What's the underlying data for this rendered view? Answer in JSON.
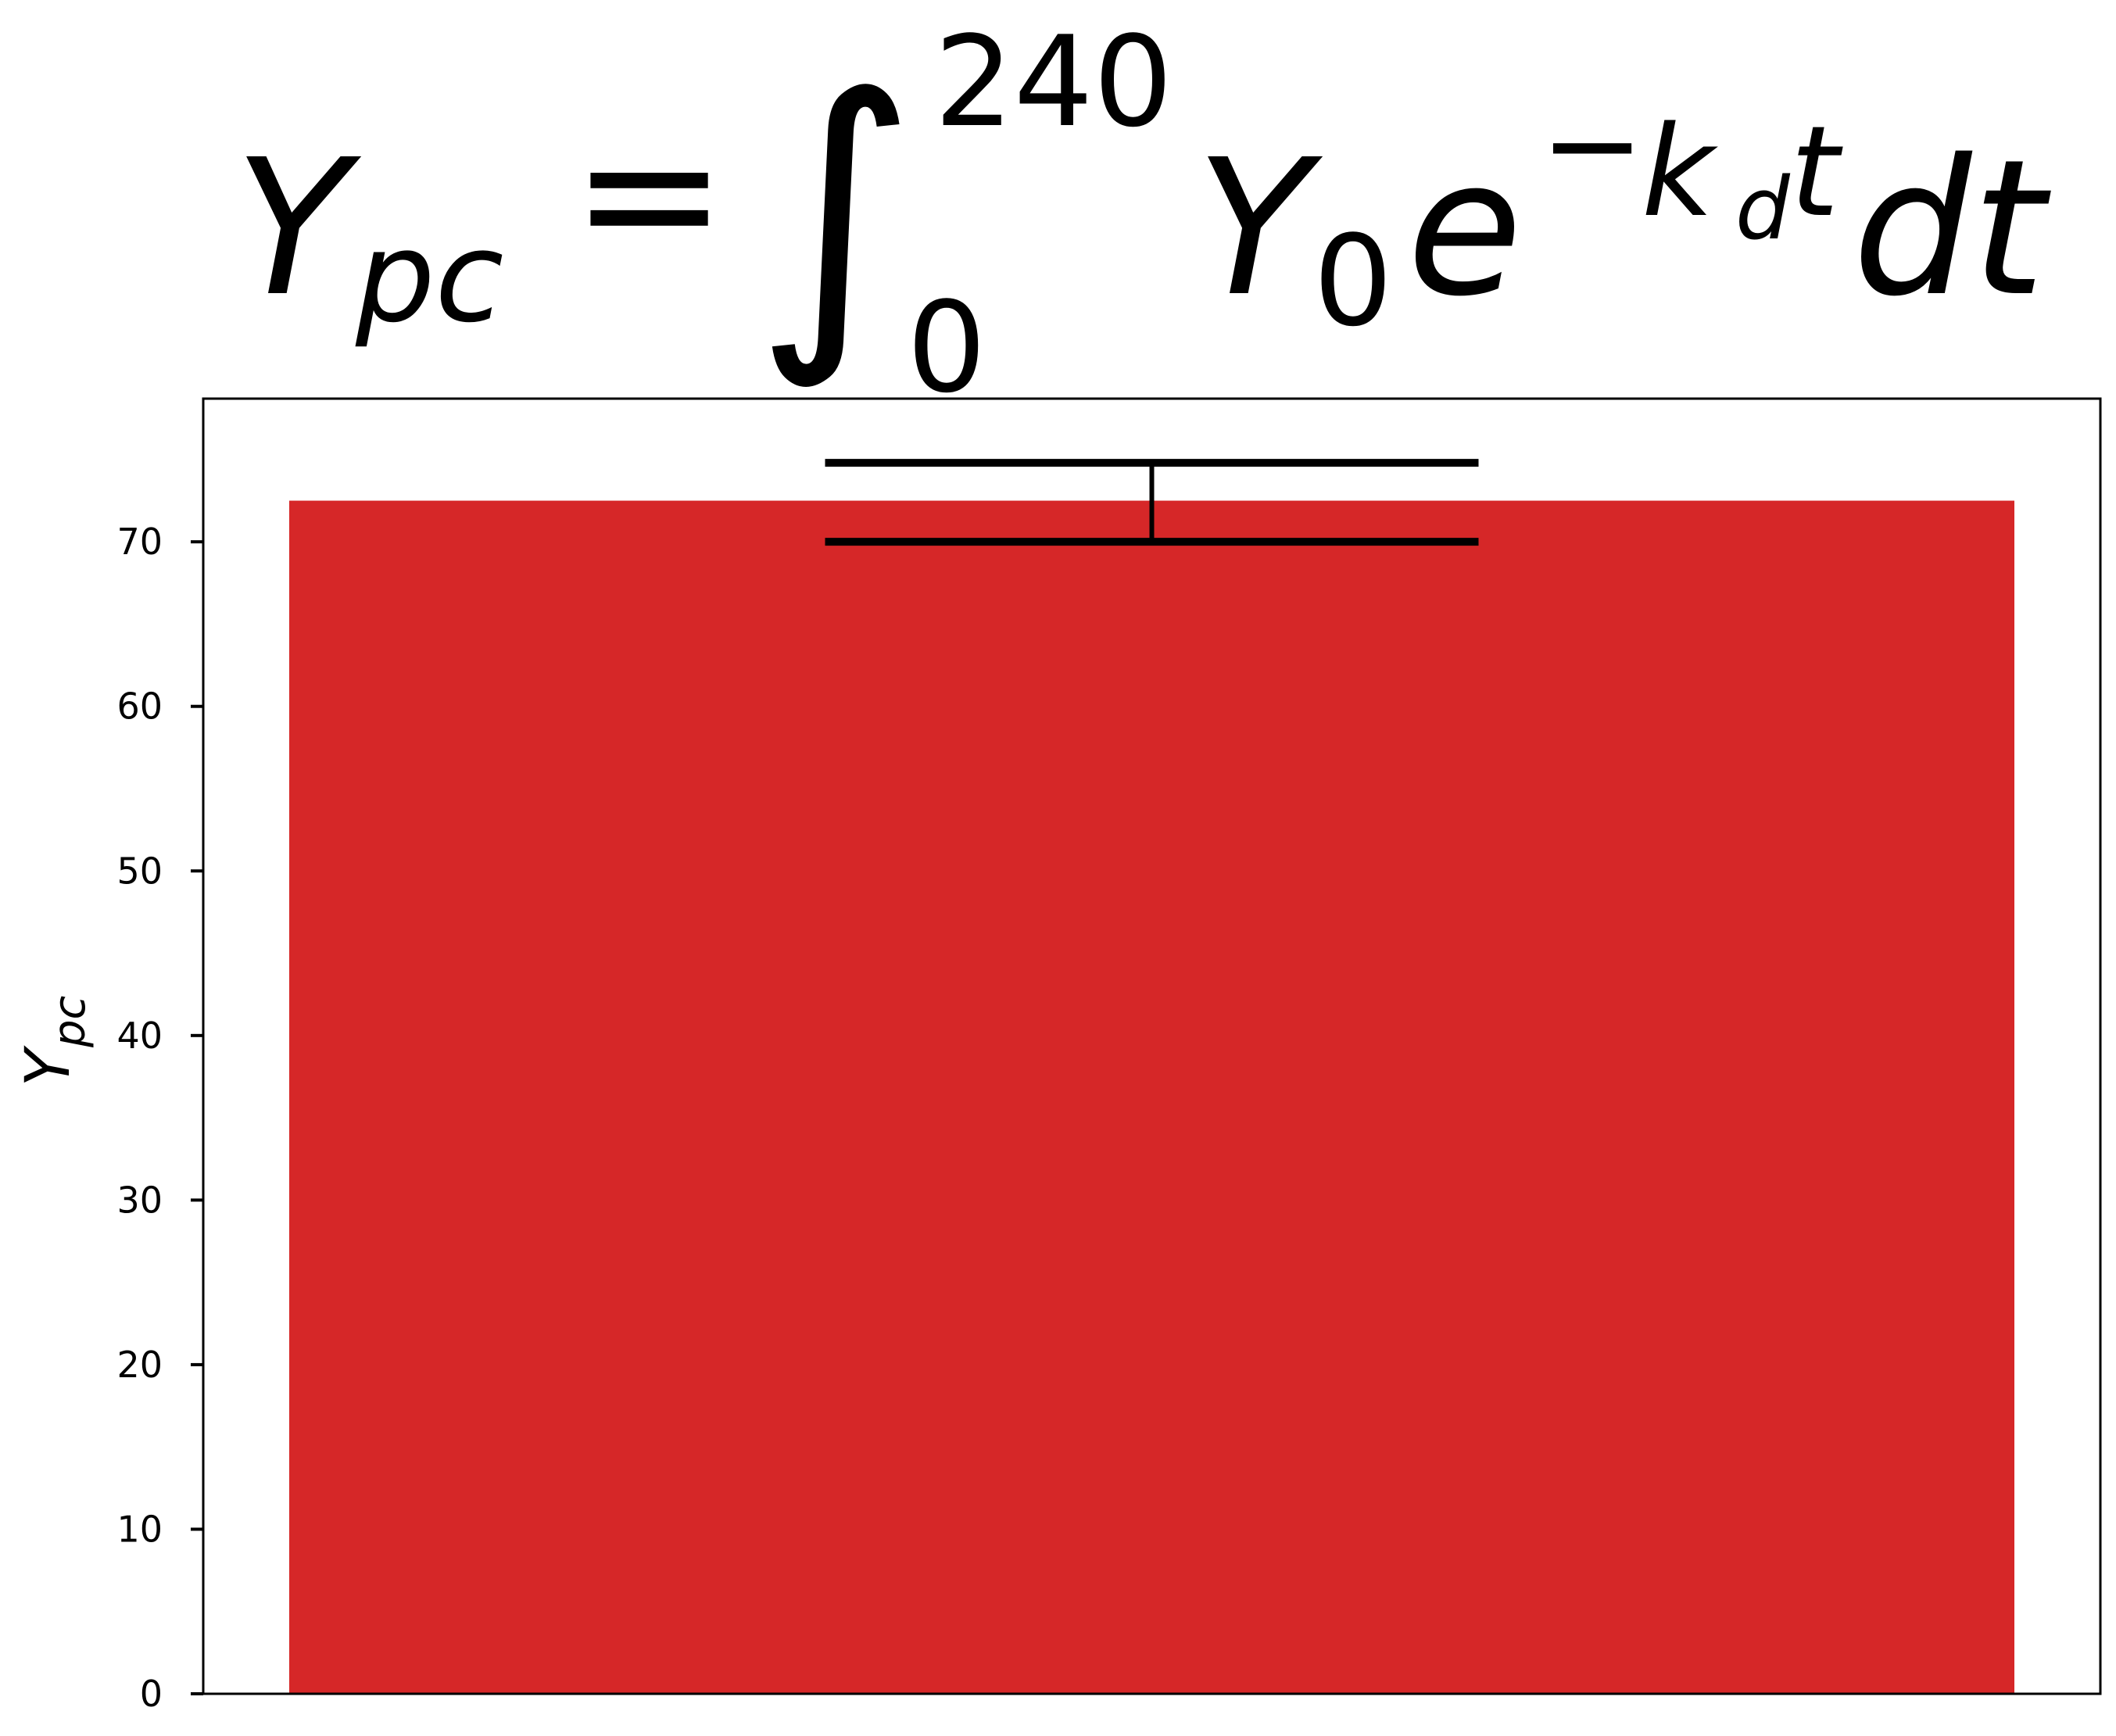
{
  "chart_data": {
    "type": "bar",
    "title": {
      "lhs": "Y",
      "lhs_sub": "pc",
      "equals": "=",
      "integral": "∫",
      "upper_limit": "240",
      "lower_limit": "0",
      "integrand_base": "Y",
      "integrand_base_sub": "0",
      "exp_base": "e",
      "exp_minus": "−",
      "exp_k": "k",
      "exp_k_sub": "d",
      "exp_t": "t",
      "differential": "dt"
    },
    "ylabel": {
      "base": "Y",
      "sub": "pc"
    },
    "categories": [
      ""
    ],
    "values": [
      72.5
    ],
    "error": {
      "lower": 70.0,
      "upper": 74.8
    },
    "ylim": [
      0,
      78.7
    ],
    "yticks": [
      0,
      10,
      20,
      30,
      40,
      50,
      60,
      70
    ],
    "grid": false,
    "legend": "none",
    "bar_color": "#d62728",
    "errorbar_color": "#000000"
  }
}
